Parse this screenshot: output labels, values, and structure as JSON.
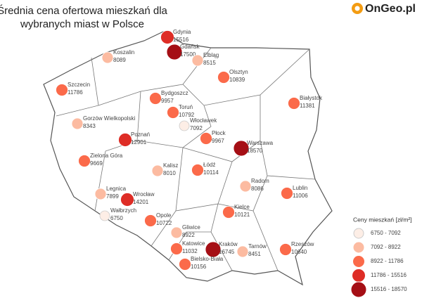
{
  "title": [
    "Średnia cena ofertowa mieszkań dla",
    "wybranych miast w Polsce"
  ],
  "logo": "OnGeo.pl",
  "cities": [
    {
      "name": "Gdynia",
      "value": 15516
    },
    {
      "name": "Gdańsk",
      "value": 17500
    },
    {
      "name": "Koszalin",
      "value": 8089
    },
    {
      "name": "Elbląg",
      "value": 8515
    },
    {
      "name": "Olsztyn",
      "value": 10839
    },
    {
      "name": "Szczecin",
      "value": 11786
    },
    {
      "name": "Białystok",
      "value": 11381
    },
    {
      "name": "Bydgoszcz",
      "value": 9957
    },
    {
      "name": "Toruń",
      "value": 10792
    },
    {
      "name": "Gorzów Wielkopolski",
      "value": 8343
    },
    {
      "name": "Włocławek",
      "value": 7092
    },
    {
      "name": "Poznań",
      "value": 12901
    },
    {
      "name": "Płock",
      "value": 9967
    },
    {
      "name": "Warszawa",
      "value": 18570
    },
    {
      "name": "Zielona Góra",
      "value": 9669
    },
    {
      "name": "Kalisz",
      "value": 8010
    },
    {
      "name": "Łódź",
      "value": 10114
    },
    {
      "name": "Radom",
      "value": 8086
    },
    {
      "name": "Lublin",
      "value": 11006
    },
    {
      "name": "Legnica",
      "value": 7899
    },
    {
      "name": "Wrocław",
      "value": 14201
    },
    {
      "name": "Wałbrzych",
      "value": 6750
    },
    {
      "name": "Opole",
      "value": 10722
    },
    {
      "name": "Kielce",
      "value": 10121
    },
    {
      "name": "Gliwice",
      "value": 8922
    },
    {
      "name": "Katowice",
      "value": 11032
    },
    {
      "name": "Kraków",
      "value": 16745
    },
    {
      "name": "Tarnów",
      "value": 8451
    },
    {
      "name": "Rzeszów",
      "value": 10640
    },
    {
      "name": "Bielsko-Biała",
      "value": 10156
    }
  ],
  "legend": {
    "title": "Ceny mieszkań [zł/m²]",
    "classes": [
      {
        "label": "6750 - 7092",
        "range": [
          6750,
          7092
        ],
        "color": "#fdeee6"
      },
      {
        "label": "7092 - 8922",
        "range": [
          7092,
          8922
        ],
        "color": "#fcbba1"
      },
      {
        "label": "8922 - 11786",
        "range": [
          8922,
          11786
        ],
        "color": "#fb6a4a"
      },
      {
        "label": "11786 - 15516",
        "range": [
          11786,
          15516
        ],
        "color": "#de2d26"
      },
      {
        "label": "15516 - 18570",
        "range": [
          15516,
          18570
        ],
        "color": "#a50f15"
      }
    ]
  }
}
